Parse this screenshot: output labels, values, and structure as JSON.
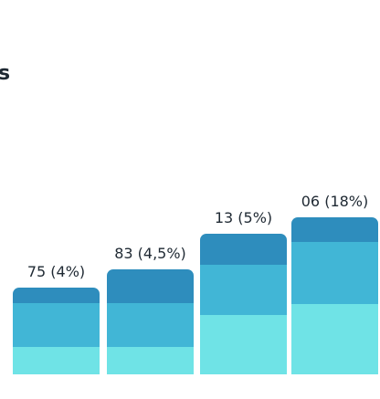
{
  "partial_title_fragment": "s",
  "colors": {
    "segment_top": "#2e8dbd",
    "segment_middle": "#41b6d6",
    "segment_bottom": "#6fe3e6",
    "label_text": "#1f2933",
    "background": "#ffffff"
  },
  "chart_data": {
    "type": "bar",
    "stacked": true,
    "bars": [
      {
        "label": "75 (4%)",
        "total": 75,
        "segments": [
          30,
          48,
          17
        ]
      },
      {
        "label": "83 (4,5%)",
        "total": 83,
        "segments": [
          30,
          48,
          37
        ]
      },
      {
        "label": "13 (5%)",
        "total": 13,
        "segments": [
          65,
          55,
          34
        ]
      },
      {
        "label": "06 (18%)",
        "total": 6,
        "segments": [
          77,
          68,
          27
        ]
      }
    ],
    "grid": false,
    "legend": "none",
    "notes": "Bar heights read in visual units; printed labels appear partially cropped in the screenshot."
  }
}
